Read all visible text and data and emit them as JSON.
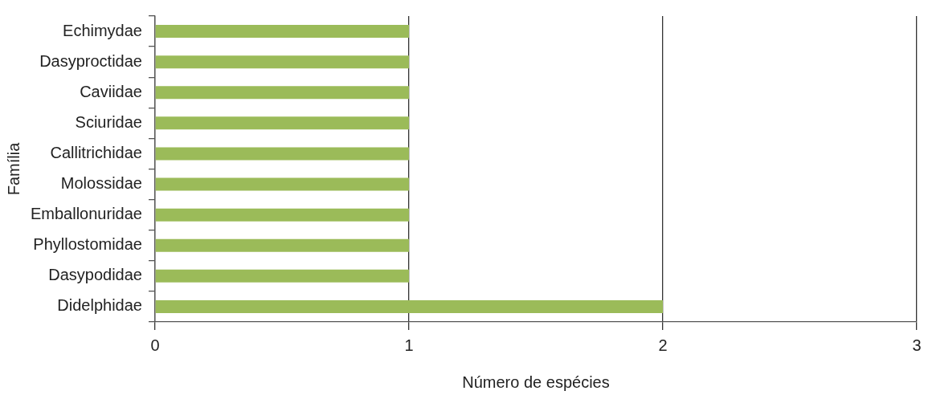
{
  "chart_data": {
    "type": "bar",
    "orientation": "horizontal",
    "categories": [
      "Echimydae",
      "Dasyproctidae",
      "Caviidae",
      "Sciuridae",
      "Callitrichidae",
      "Molossidae",
      "Emballonuridae",
      "Phyllostomidae",
      "Dasypodidae",
      "Didelphidae"
    ],
    "values": [
      1,
      1,
      1,
      1,
      1,
      1,
      1,
      1,
      1,
      2
    ],
    "color": "#9bbb59",
    "xlim": [
      0,
      3
    ],
    "xticks": [
      0,
      1,
      2,
      3
    ],
    "xlabel": "Número de espécies",
    "ylabel": "Família",
    "grid": "x",
    "legend": false
  }
}
